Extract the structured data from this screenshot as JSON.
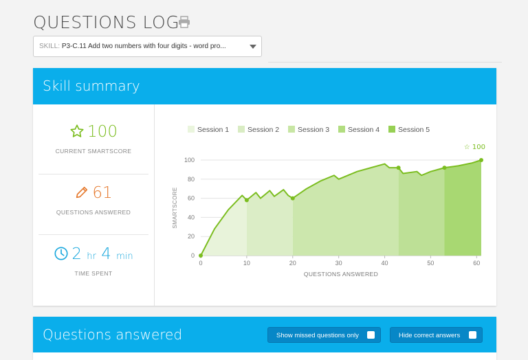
{
  "page": {
    "title": "QUESTIONS LOG"
  },
  "skill_select": {
    "label": "SKILL:",
    "value": "P3-C.11 Add two numbers with four digits - word pro..."
  },
  "summary": {
    "header": "Skill summary",
    "smartscore": {
      "value": "100",
      "label": "CURRENT SMARTSCORE"
    },
    "answered": {
      "value": "61",
      "label": "QUESTIONS ANSWERED"
    },
    "time": {
      "hours": "2",
      "hours_unit": "hr",
      "minutes": "4",
      "minutes_unit": "min",
      "label": "TIME SPENT"
    }
  },
  "colors": {
    "accent": "#0aaeeb",
    "green": "#7bbd1f",
    "orange": "#e5782c",
    "blue": "#18a7dd"
  },
  "chart_data": {
    "type": "area",
    "xlabel": "QUESTIONS ANSWERED",
    "ylabel": "SMARTSCORE",
    "xlim": [
      0,
      61
    ],
    "ylim": [
      0,
      100
    ],
    "xticks": [
      0,
      10,
      20,
      30,
      40,
      50,
      60
    ],
    "yticks": [
      0,
      20,
      40,
      60,
      80,
      100
    ],
    "grid": true,
    "legend_position": "top",
    "end_annotation": "100",
    "series": [
      {
        "name": "Session 1",
        "color": "#e8f3da",
        "legend_color": "#eaf5dd",
        "points": [
          [
            0,
            0
          ],
          [
            3,
            28
          ],
          [
            6,
            48
          ],
          [
            9,
            63
          ],
          [
            10,
            58
          ]
        ]
      },
      {
        "name": "Session 2",
        "color": "#dbedc6",
        "legend_color": "#d9ecc3",
        "points": [
          [
            10,
            58
          ],
          [
            12,
            66
          ],
          [
            13,
            60
          ],
          [
            15,
            68
          ],
          [
            16,
            62
          ],
          [
            18,
            69
          ],
          [
            19,
            63
          ],
          [
            20,
            60
          ]
        ]
      },
      {
        "name": "Session 3",
        "color": "#cce7ad",
        "legend_color": "#c8e6a4",
        "points": [
          [
            20,
            60
          ],
          [
            23,
            70
          ],
          [
            26,
            78
          ],
          [
            29,
            84
          ],
          [
            30,
            80
          ],
          [
            34,
            88
          ],
          [
            37,
            92
          ],
          [
            40,
            96
          ],
          [
            41,
            92
          ],
          [
            43,
            92
          ]
        ]
      },
      {
        "name": "Session 4",
        "color": "#bde096",
        "legend_color": "#b2dd80",
        "points": [
          [
            43,
            92
          ],
          [
            44,
            86
          ],
          [
            47,
            88
          ],
          [
            48,
            84
          ],
          [
            50,
            88
          ],
          [
            53,
            92
          ]
        ]
      },
      {
        "name": "Session 5",
        "color": "#a8d872",
        "legend_color": "#97d054",
        "points": [
          [
            53,
            92
          ],
          [
            56,
            94
          ],
          [
            59,
            97
          ],
          [
            61,
            100
          ]
        ]
      }
    ],
    "markers": [
      [
        0,
        0
      ],
      [
        10,
        58
      ],
      [
        20,
        60
      ],
      [
        43,
        92
      ],
      [
        53,
        92
      ],
      [
        61,
        100
      ]
    ]
  },
  "questions": {
    "header": "Questions answered",
    "missed_button": "Show missed questions only",
    "hide_button": "Hide correct answers"
  }
}
